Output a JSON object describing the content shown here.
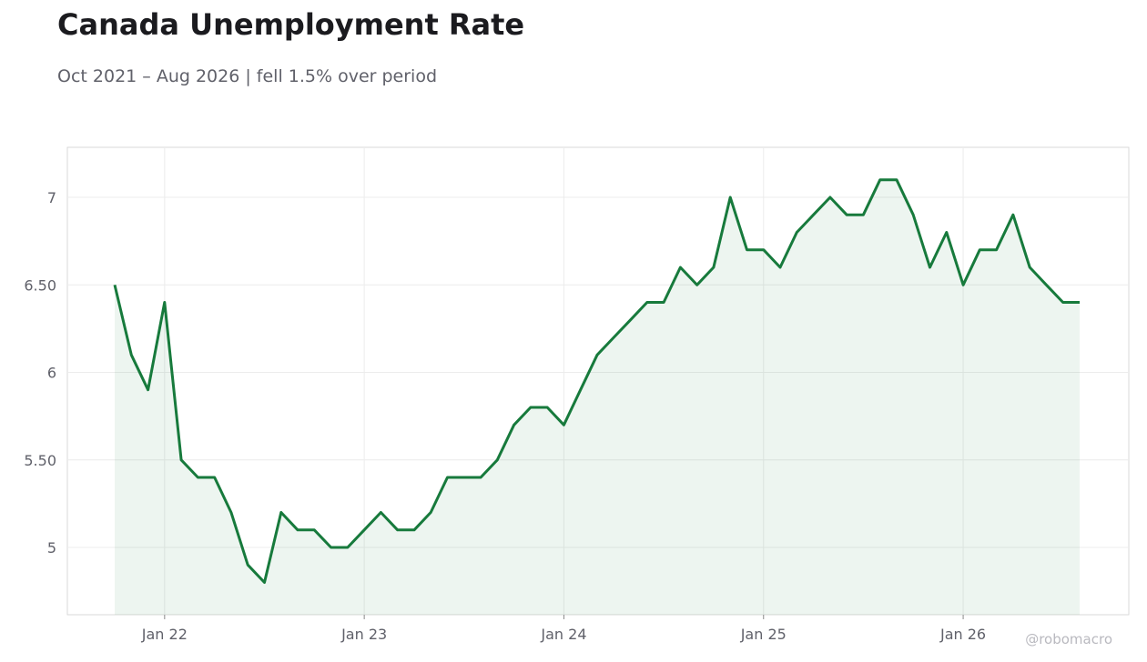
{
  "title": "Canada Unemployment Rate",
  "subtitle": "Oct 2021 – Aug 2026 | fell 1.5% over period",
  "watermark": "@robomacro",
  "colors": {
    "line": "#177a3c",
    "fill": "#177a3c",
    "grid": "#ececec",
    "frame": "#d9d9d9"
  },
  "chart_data": {
    "type": "area",
    "x_start": "2021-10",
    "x_end": "2026-08",
    "x_tick_labels": [
      "Jan 22",
      "Jan 23",
      "Jan 24",
      "Jan 25",
      "Jan 26"
    ],
    "y_tick_values": [
      5,
      5.5,
      6,
      6.5,
      7
    ],
    "y_tick_labels": [
      "5",
      "5.50",
      "6",
      "6.50",
      "7"
    ],
    "ylim": [
      4.62,
      7.29
    ],
    "grid": true,
    "series": [
      {
        "x": [
          "2021-10",
          "2021-11",
          "2021-12",
          "2022-01",
          "2022-02",
          "2022-03",
          "2022-04",
          "2022-05",
          "2022-06",
          "2022-07",
          "2022-08",
          "2022-09",
          "2022-10",
          "2022-11",
          "2022-12",
          "2023-01",
          "2023-02",
          "2023-03",
          "2023-04",
          "2023-05",
          "2023-06",
          "2023-07",
          "2023-08",
          "2023-09",
          "2023-10",
          "2023-11",
          "2023-12",
          "2024-01",
          "2024-02",
          "2024-03",
          "2024-04",
          "2024-05",
          "2024-06",
          "2024-07",
          "2024-08",
          "2024-09",
          "2024-10",
          "2024-11",
          "2024-12",
          "2025-01",
          "2025-02",
          "2025-03",
          "2025-04",
          "2025-05",
          "2025-06",
          "2025-07",
          "2025-08",
          "2025-09",
          "2025-10",
          "2025-11",
          "2025-12",
          "2026-01",
          "2026-02",
          "2026-03",
          "2026-04",
          "2026-05",
          "2026-06",
          "2026-07",
          "2026-08"
        ],
        "values": [
          6.5,
          6.1,
          5.9,
          6.4,
          5.5,
          5.4,
          5.4,
          5.2,
          4.9,
          4.8,
          5.2,
          5.1,
          5.1,
          5.0,
          5.0,
          5.1,
          5.2,
          5.1,
          5.1,
          5.2,
          5.4,
          5.4,
          5.4,
          5.5,
          5.7,
          5.8,
          5.8,
          5.7,
          5.9,
          6.1,
          6.2,
          6.3,
          6.4,
          6.4,
          6.6,
          6.5,
          6.6,
          7.0,
          6.7,
          6.7,
          6.6,
          6.8,
          6.9,
          7.0,
          6.9,
          6.9,
          7.1,
          7.1,
          6.9,
          6.6,
          6.8,
          6.5,
          6.7,
          6.7,
          6.9,
          6.6,
          6.5,
          6.4,
          6.4
        ]
      }
    ]
  }
}
